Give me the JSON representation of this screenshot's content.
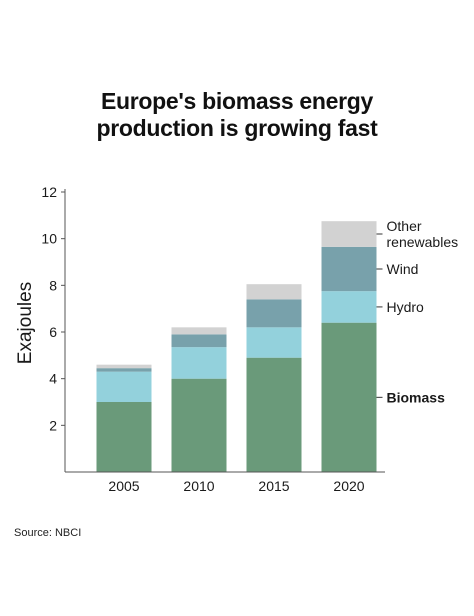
{
  "chart_data": {
    "type": "bar",
    "stacked": true,
    "title": [
      "Europe's biomass energy",
      "production is growing fast"
    ],
    "ylabel": "Exajoules",
    "xlabel": "",
    "ylim": [
      0,
      12
    ],
    "yticks": [
      2,
      4,
      6,
      8,
      10,
      12
    ],
    "grid": false,
    "legend_placement": "right (labels beside last bar)",
    "categories": [
      "2005",
      "2010",
      "2015",
      "2020"
    ],
    "series": [
      {
        "name": "Biomass",
        "color": "#6a9a7a",
        "values": [
          3.0,
          4.0,
          4.9,
          6.4
        ],
        "bold": true
      },
      {
        "name": "Hydro",
        "color": "#93d1dc",
        "values": [
          1.3,
          1.35,
          1.3,
          1.35
        ]
      },
      {
        "name": "Wind",
        "color": "#78a1ab",
        "values": [
          0.15,
          0.55,
          1.2,
          1.9
        ]
      },
      {
        "name": "Other renewables",
        "label_lines": [
          "Other",
          "renewables"
        ],
        "color": "#d2d2d2",
        "values": [
          0.15,
          0.3,
          0.65,
          1.1
        ]
      }
    ],
    "source": "Source: NBCI"
  }
}
